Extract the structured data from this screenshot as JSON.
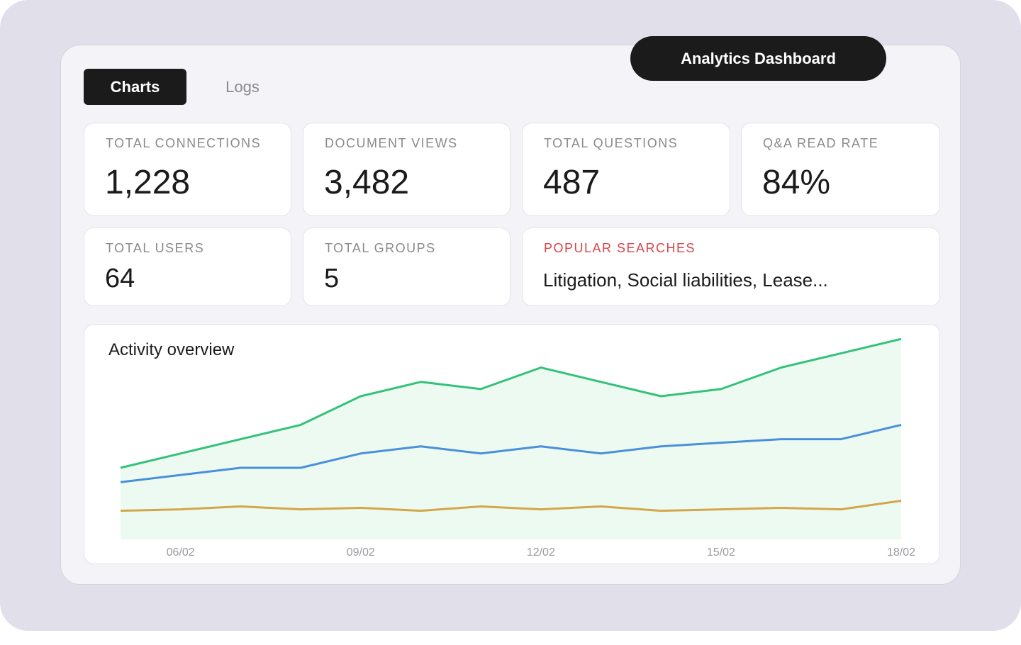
{
  "header": {
    "title": "Analytics Dashboard"
  },
  "tabs": [
    {
      "label": "Charts",
      "active": true
    },
    {
      "label": "Logs",
      "active": false
    }
  ],
  "stats": {
    "total_connections": {
      "label": "TOTAL CONNECTIONS",
      "value": "1,228"
    },
    "document_views": {
      "label": "DOCUMENT VIEWS",
      "value": "3,482"
    },
    "total_questions": {
      "label": "TOTAL QUESTIONS",
      "value": "487"
    },
    "qa_read_rate": {
      "label": "Q&A READ RATE",
      "value": "84%"
    },
    "total_users": {
      "label": "TOTAL USERS",
      "value": "64"
    },
    "total_groups": {
      "label": "TOTAL GROUPS",
      "value": "5"
    },
    "popular_searches": {
      "label": "POPULAR SEARCHES",
      "value": "Litigation, Social liabilities, Lease..."
    }
  },
  "colors": {
    "accent_dark": "#1b1b1b",
    "alert_red": "#d9454a",
    "series_green": "#33c27a",
    "series_blue": "#4a90d9",
    "series_gold": "#d4a64a",
    "area_fill": "#ecfaf2"
  },
  "chart_data": {
    "type": "line",
    "title": "Activity overview",
    "x": [
      "05/02",
      "06/02",
      "07/02",
      "08/02",
      "09/02",
      "10/02",
      "11/02",
      "12/02",
      "13/02",
      "14/02",
      "15/02",
      "16/02",
      "17/02",
      "18/02"
    ],
    "tick_labels": [
      "06/02",
      "09/02",
      "12/02",
      "15/02",
      "18/02"
    ],
    "ylim": [
      0,
      300
    ],
    "grid": false,
    "legend": "none",
    "series": [
      {
        "color": "#33c27a",
        "filled": true,
        "values": [
          100,
          120,
          140,
          160,
          200,
          220,
          210,
          240,
          220,
          200,
          210,
          240,
          260,
          280
        ]
      },
      {
        "color": "#4a90d9",
        "filled": false,
        "values": [
          80,
          90,
          100,
          100,
          120,
          130,
          120,
          130,
          120,
          130,
          135,
          140,
          140,
          160
        ]
      },
      {
        "color": "#d4a64a",
        "filled": false,
        "values": [
          40,
          42,
          46,
          42,
          44,
          40,
          46,
          42,
          46,
          40,
          42,
          44,
          42,
          54
        ]
      }
    ]
  }
}
